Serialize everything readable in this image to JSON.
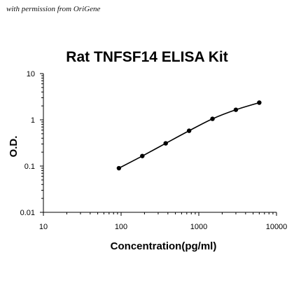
{
  "watermark": "with permission from OriGene",
  "chart_data": {
    "type": "line",
    "title": "Rat TNFSF14 ELISA Kit",
    "xlabel": "Concentration(pg/ml)",
    "ylabel": "O.D.",
    "x_scale": "log",
    "y_scale": "log",
    "xlim": [
      10,
      10000
    ],
    "ylim": [
      0.01,
      10
    ],
    "x_ticks": [
      "10",
      "100",
      "1000",
      "10000"
    ],
    "y_ticks": [
      "0.01",
      "0.1",
      "1",
      "10"
    ],
    "grid": false,
    "legend": "none",
    "series": [
      {
        "x": [
          93.75,
          187.5,
          375,
          750,
          1500,
          3000,
          6000
        ],
        "y": [
          0.09,
          0.165,
          0.31,
          0.58,
          1.05,
          1.65,
          2.35
        ]
      }
    ],
    "line_color": "#000000",
    "marker_color": "#000000"
  }
}
